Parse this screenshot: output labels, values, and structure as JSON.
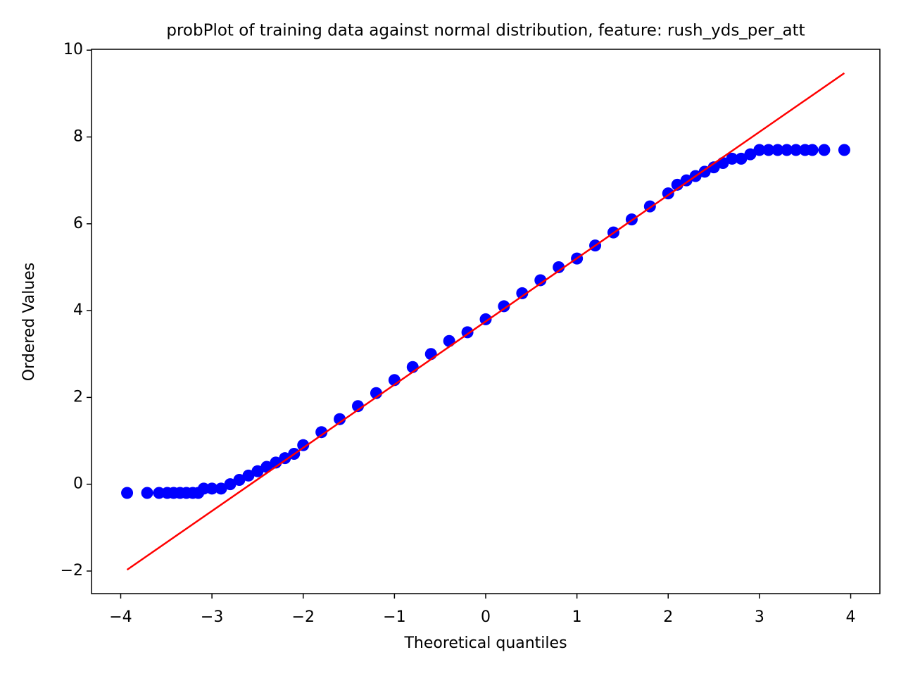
{
  "chart_data": {
    "type": "scatter",
    "title": "probPlot of training data against normal distribution, feature: rush_yds_per_att",
    "x_label": "Theoretical quantiles",
    "y_label": "Ordered Values",
    "xlim": [
      -4.32,
      4.32
    ],
    "ylim": [
      -2.52,
      10.02
    ],
    "xticks": [
      {
        "value": -4,
        "label": "−4"
      },
      {
        "value": -3,
        "label": "−3"
      },
      {
        "value": -2,
        "label": "−2"
      },
      {
        "value": -1,
        "label": "−1"
      },
      0,
      1,
      2,
      3,
      4
    ],
    "yticks": [
      {
        "value": -2,
        "label": "−2"
      },
      0,
      2,
      4,
      6,
      8,
      10
    ],
    "grid": false,
    "series": [
      {
        "type": "scatter",
        "color": "#0000ff",
        "x": [
          -3.93,
          -3.71,
          -3.58,
          -3.49,
          -3.42,
          -3.35,
          -3.28,
          -3.21,
          -3.15,
          -3.09,
          -3.0,
          -2.9,
          -2.8,
          -2.7,
          -2.6,
          -2.5,
          -2.4,
          -2.3,
          -2.2,
          -2.1,
          -2.0,
          -1.8,
          -1.6,
          -1.4,
          -1.2,
          -1.0,
          -0.8,
          -0.6,
          -0.4,
          -0.2,
          0,
          0.2,
          0.4,
          0.6,
          0.8,
          1.0,
          1.2,
          1.4,
          1.6,
          1.8,
          2.0,
          2.1,
          2.2,
          2.3,
          2.4,
          2.5,
          2.6,
          2.7,
          2.8,
          2.9,
          3.0,
          3.1,
          3.2,
          3.3,
          3.4,
          3.5,
          3.58,
          3.71,
          3.93
        ],
        "y": [
          -0.2,
          -0.2,
          -0.2,
          -0.2,
          -0.2,
          -0.2,
          -0.2,
          -0.2,
          -0.2,
          -0.1,
          -0.1,
          -0.1,
          0.0,
          0.1,
          0.2,
          0.3,
          0.4,
          0.5,
          0.6,
          0.7,
          0.9,
          1.2,
          1.5,
          1.8,
          2.1,
          2.4,
          2.7,
          3.0,
          3.3,
          3.5,
          3.8,
          4.1,
          4.4,
          4.7,
          5.0,
          5.2,
          5.5,
          5.8,
          6.1,
          6.4,
          6.7,
          6.9,
          7.0,
          7.1,
          7.2,
          7.3,
          7.4,
          7.5,
          7.5,
          7.6,
          7.7,
          7.7,
          7.7,
          7.7,
          7.7,
          7.7,
          7.7,
          7.7,
          7.7
        ]
      },
      {
        "type": "line",
        "color": "#ff0000",
        "x": [
          -3.93,
          3.93
        ],
        "y": [
          -1.97,
          9.47
        ]
      }
    ]
  }
}
